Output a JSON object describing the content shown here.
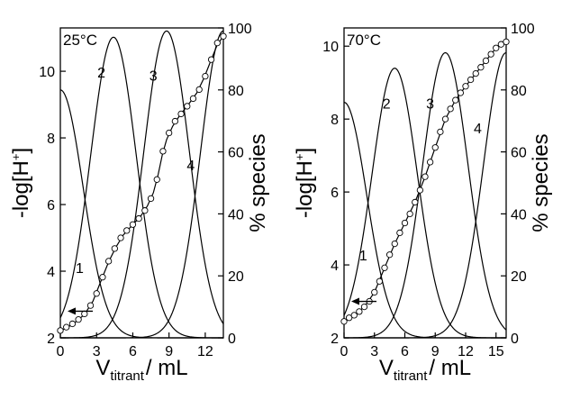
{
  "chart_data": [
    {
      "type": "line",
      "title": "",
      "temperature_label": "25°C",
      "x_axis": {
        "label_main": "V",
        "label_sub": "titrant",
        "label_rest": "/ mL",
        "range": [
          0,
          13.5
        ],
        "ticks": [
          "0",
          "3",
          "6",
          "9",
          "12"
        ]
      },
      "y_left": {
        "label_main": "-log[H",
        "label_sup": "+",
        "label_end": "]",
        "range": [
          2,
          11.3
        ],
        "ticks": [
          "2",
          "4",
          "6",
          "8",
          "10"
        ]
      },
      "y_right": {
        "label": "% species",
        "range": [
          0,
          100
        ],
        "ticks": [
          "0",
          "20",
          "40",
          "60",
          "80",
          "100"
        ]
      },
      "arrow_direction": "left",
      "species": [
        {
          "label": "1",
          "center": 0,
          "peak": 80
        },
        {
          "label": "2",
          "center": 4.4,
          "peak": 97
        },
        {
          "label": "3",
          "center": 8.8,
          "peak": 99
        },
        {
          "label": "4",
          "center": 13.5,
          "peak": 99
        }
      ],
      "species_label_positions": [
        [
          1.6,
          21
        ],
        [
          3.4,
          84
        ],
        [
          7.7,
          83
        ],
        [
          10.8,
          54
        ]
      ],
      "titration_points": [
        [
          0,
          2.22
        ],
        [
          0.5,
          2.32
        ],
        [
          1,
          2.42
        ],
        [
          1.5,
          2.55
        ],
        [
          2,
          2.72
        ],
        [
          2.5,
          2.97
        ],
        [
          3,
          3.33
        ],
        [
          3.5,
          3.82
        ],
        [
          4,
          4.3
        ],
        [
          4.5,
          4.68
        ],
        [
          5,
          5
        ],
        [
          5.5,
          5.22
        ],
        [
          6,
          5.4
        ],
        [
          6.5,
          5.58
        ],
        [
          7,
          5.82
        ],
        [
          7.5,
          6.18
        ],
        [
          8,
          6.75
        ],
        [
          8.5,
          7.6
        ],
        [
          9,
          8.15
        ],
        [
          9.5,
          8.5
        ],
        [
          10,
          8.72
        ],
        [
          10.5,
          8.95
        ],
        [
          11,
          9.18
        ],
        [
          11.5,
          9.45
        ],
        [
          12,
          9.85
        ],
        [
          12.5,
          10.35
        ],
        [
          13,
          10.85
        ],
        [
          13.5,
          11.05
        ]
      ],
      "titration_curve": [
        [
          0,
          2.2
        ],
        [
          1,
          2.4
        ],
        [
          2,
          2.7
        ],
        [
          2.7,
          3.1
        ],
        [
          3.3,
          3.65
        ],
        [
          4,
          4.28
        ],
        [
          4.6,
          4.72
        ],
        [
          5.2,
          5.08
        ],
        [
          6,
          5.4
        ],
        [
          6.6,
          5.62
        ],
        [
          7.2,
          5.95
        ],
        [
          7.7,
          6.35
        ],
        [
          8.1,
          6.9
        ],
        [
          8.45,
          7.5
        ],
        [
          8.8,
          7.95
        ],
        [
          9.3,
          8.35
        ],
        [
          9.9,
          8.68
        ],
        [
          10.6,
          9
        ],
        [
          11.3,
          9.35
        ],
        [
          11.9,
          9.8
        ],
        [
          12.5,
          10.35
        ],
        [
          13,
          10.8
        ],
        [
          13.5,
          11.05
        ]
      ]
    },
    {
      "type": "line",
      "title": "",
      "temperature_label": "70°C",
      "x_axis": {
        "label_main": "V",
        "label_sub": "titrant",
        "label_rest": "/ mL",
        "range": [
          0,
          16
        ],
        "ticks": [
          "0",
          "3",
          "6",
          "9",
          "12",
          "15"
        ]
      },
      "y_left": {
        "label_main": "-log[H",
        "label_sup": "+",
        "label_end": "]",
        "range": [
          2,
          10.5
        ],
        "ticks": [
          "2",
          "4",
          "6",
          "8",
          "10"
        ]
      },
      "y_right": {
        "label": "% species",
        "range": [
          0,
          100
        ],
        "ticks": [
          "0",
          "20",
          "40",
          "60",
          "80",
          "100"
        ]
      },
      "arrow_direction": "left",
      "species": [
        {
          "label": "1",
          "center": 0,
          "peak": 76
        },
        {
          "label": "2",
          "center": 5,
          "peak": 87
        },
        {
          "label": "3",
          "center": 10,
          "peak": 92
        },
        {
          "label": "4",
          "center": 16,
          "peak": 92
        }
      ],
      "species_label_positions": [
        [
          1.9,
          25
        ],
        [
          4.2,
          74
        ],
        [
          8.5,
          74
        ],
        [
          13.2,
          66
        ]
      ],
      "titration_points": [
        [
          0,
          2.45
        ],
        [
          0.5,
          2.55
        ],
        [
          1,
          2.62
        ],
        [
          1.5,
          2.72
        ],
        [
          2,
          2.85
        ],
        [
          2.5,
          3
        ],
        [
          3,
          3.25
        ],
        [
          3.5,
          3.55
        ],
        [
          4,
          3.92
        ],
        [
          4.5,
          4.28
        ],
        [
          5,
          4.58
        ],
        [
          5.5,
          4.88
        ],
        [
          6,
          5.15
        ],
        [
          6.5,
          5.4
        ],
        [
          7,
          5.72
        ],
        [
          7.5,
          6.05
        ],
        [
          8,
          6.42
        ],
        [
          8.5,
          6.82
        ],
        [
          9,
          7.22
        ],
        [
          9.5,
          7.65
        ],
        [
          10,
          8
        ],
        [
          10.5,
          8.28
        ],
        [
          11,
          8.52
        ],
        [
          11.5,
          8.72
        ],
        [
          12,
          8.9
        ],
        [
          12.5,
          9.08
        ],
        [
          13,
          9.25
        ],
        [
          13.5,
          9.42
        ],
        [
          14,
          9.6
        ],
        [
          14.5,
          9.78
        ],
        [
          15,
          9.95
        ],
        [
          15.5,
          10.05
        ],
        [
          16,
          10.12
        ]
      ],
      "titration_curve": [
        [
          0,
          2.45
        ],
        [
          1,
          2.62
        ],
        [
          2,
          2.85
        ],
        [
          3,
          3.25
        ],
        [
          4,
          3.92
        ],
        [
          5,
          4.58
        ],
        [
          6,
          5.15
        ],
        [
          7,
          5.72
        ],
        [
          8,
          6.42
        ],
        [
          9,
          7.22
        ],
        [
          10,
          8
        ],
        [
          11,
          8.52
        ],
        [
          12,
          8.9
        ],
        [
          13,
          9.25
        ],
        [
          14,
          9.6
        ],
        [
          15,
          9.95
        ],
        [
          16,
          10.15
        ]
      ]
    }
  ]
}
